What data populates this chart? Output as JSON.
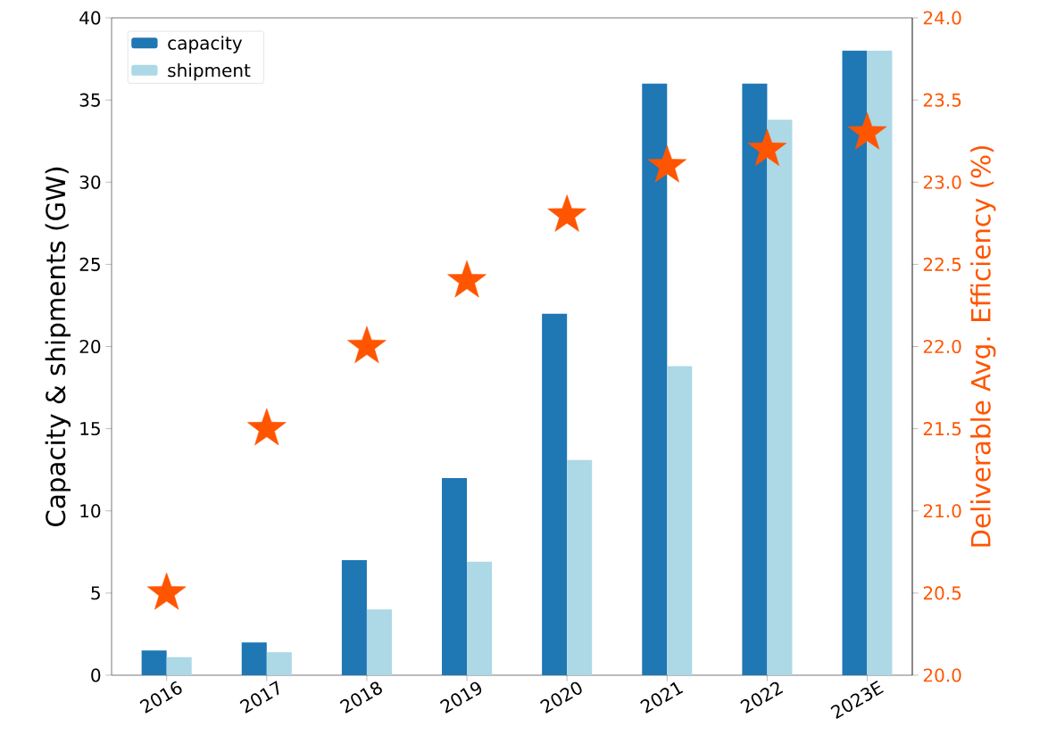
{
  "chart_data": {
    "type": "bar",
    "categories": [
      "2016",
      "2017",
      "2018",
      "2019",
      "2020",
      "2021",
      "2022",
      "2023E"
    ],
    "ylabel": "Capacity & shipments (GW)",
    "y2label": "Deliverable Avg. Efficiency (%)",
    "ylim": [
      0,
      40
    ],
    "yticks": [
      0,
      5,
      10,
      15,
      20,
      25,
      30,
      35,
      40
    ],
    "y2lim": [
      20,
      24
    ],
    "y2ticks": [
      {
        "value": 20,
        "label": "20.0"
      },
      {
        "value": 20.5,
        "label": "20.5"
      },
      {
        "value": 21,
        "label": "21.0"
      },
      {
        "value": 21.5,
        "label": "21.5"
      },
      {
        "value": 22,
        "label": "22.0"
      },
      {
        "value": 22.5,
        "label": "22.5"
      },
      {
        "value": 23,
        "label": "23.0"
      },
      {
        "value": 23.5,
        "label": "23.5"
      },
      {
        "value": 24,
        "label": "24.0"
      }
    ],
    "legend": "top left",
    "series": [
      {
        "name": "capacity",
        "color": "#1f77b4",
        "values": [
          1.5,
          2,
          7,
          12,
          22,
          36,
          36,
          38
        ]
      },
      {
        "name": "shipment",
        "color": "#add8e6",
        "values": [
          1.1,
          1.4,
          4,
          6.9,
          13.1,
          18.8,
          33.8,
          38
        ]
      },
      {
        "type": "scatter",
        "axis": "y2",
        "color": "#ff5500",
        "marker": "star",
        "values": [
          20.5,
          21.5,
          22,
          22.4,
          22.8,
          23.1,
          23.2,
          23.3
        ]
      }
    ]
  }
}
